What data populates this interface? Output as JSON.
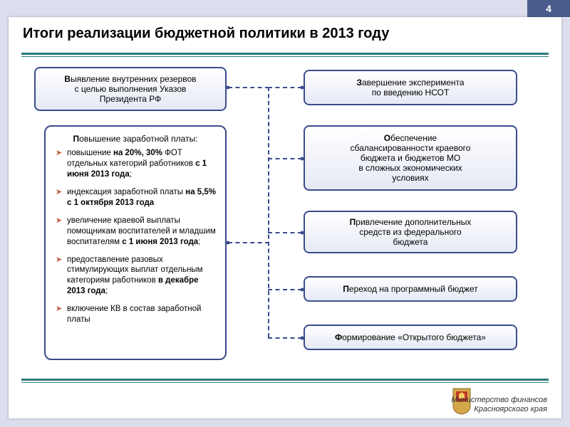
{
  "page_number": "4",
  "title": "Итоги реализации бюджетной политики в 2013 году",
  "colors": {
    "box_border": "#3a4c8c",
    "divider": "#2e7a7a",
    "bullet": "#c05a3a",
    "page_bg": "#dcdeee",
    "slide_bg": "#ffffff",
    "header_bg": "#4a5c8a"
  },
  "left_top_box": {
    "line1_bold": "В",
    "line1_rest": "ыявление внутренних резервов",
    "line2": "с целью выполнения Указов",
    "line3": "Президента РФ"
  },
  "salary_box": {
    "title_bold": "П",
    "title_rest": "овышение заработной платы:",
    "items": [
      {
        "html": "повышение <b>на 20%, 30%</b> ФОТ отдельных категорий работников <b>с 1 июня 2013 года</b>;"
      },
      {
        "html": "индексация заработной платы <b>на 5,5% с 1 октября 2013 года</b>"
      },
      {
        "html": "увеличение краевой выплаты помощникам воспитателей и младшим воспитателям <b>с 1 июня 2013 года</b>;"
      },
      {
        "html": "предоставление разовых стимулирующих выплат отдельным категориям работников <b>в декабре 2013 года</b>;"
      },
      {
        "html": "включение КВ в состав заработной платы"
      }
    ]
  },
  "right_boxes": [
    {
      "line1": "<b>З</b>авершение эксперимента",
      "line2": "по введению НСОТ"
    },
    {
      "line1": "<b>О</b>беспечение",
      "line2": "сбалансированности краевого",
      "line3": "бюджета и бюджетов МО",
      "line4": "в сложных экономических",
      "line5": "условиях"
    },
    {
      "line1": "<b>П</b>ривлечение дополнительных",
      "line2": "средств из федерального",
      "line3": "бюджета"
    },
    {
      "line1": "<b>П</b>ереход на программный бюджет"
    },
    {
      "line1": "<b>Ф</b>ормирование «Открытого бюджета»"
    }
  ],
  "footer": {
    "line1": "Министерство финансов",
    "line2": "Красноярского края"
  }
}
